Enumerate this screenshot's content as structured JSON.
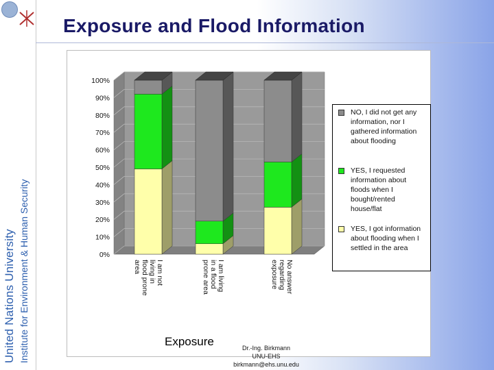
{
  "slide": {
    "title": "Exposure and Flood Information",
    "university": "United Nations University",
    "institute": "Institute for Environment & Human Security",
    "author_line1": "Dr.-Ing. Birkmann",
    "author_line2": "UNU-EHS",
    "author_line3": "birkmann@ehs.unu.edu"
  },
  "colors": {
    "no_info": "#8c8c8c",
    "requested": "#1ee81e",
    "got_info": "#ffffaa",
    "wall": "#9a9a9a",
    "floor": "#7f7f7f",
    "title": "#1a1a66",
    "vertical_text": "#2d5fae"
  },
  "chart_data": {
    "type": "bar",
    "stacked": true,
    "three_d": true,
    "categories": [
      "I am not living in flood prone area",
      "I am living in a flood prone area",
      "No answer regarding exposure"
    ],
    "series": [
      {
        "name": "YES, I got information about flooding when I settled in the area",
        "values": [
          49,
          6,
          27
        ]
      },
      {
        "name": "YES, I requested information about floods when I bought/rented house/flat",
        "values": [
          43,
          13,
          26
        ]
      },
      {
        "name": "NO, I did not get any information, nor I gathered information about flooding",
        "values": [
          8,
          81,
          47
        ]
      }
    ],
    "xlabel": "Exposure",
    "ylabel": "",
    "yticks": [
      "0%",
      "10%",
      "20%",
      "30%",
      "40%",
      "50%",
      "60%",
      "70%",
      "80%",
      "90%",
      "100%"
    ],
    "ylim": [
      0,
      100
    ],
    "grid": true,
    "legend_position": "right"
  }
}
